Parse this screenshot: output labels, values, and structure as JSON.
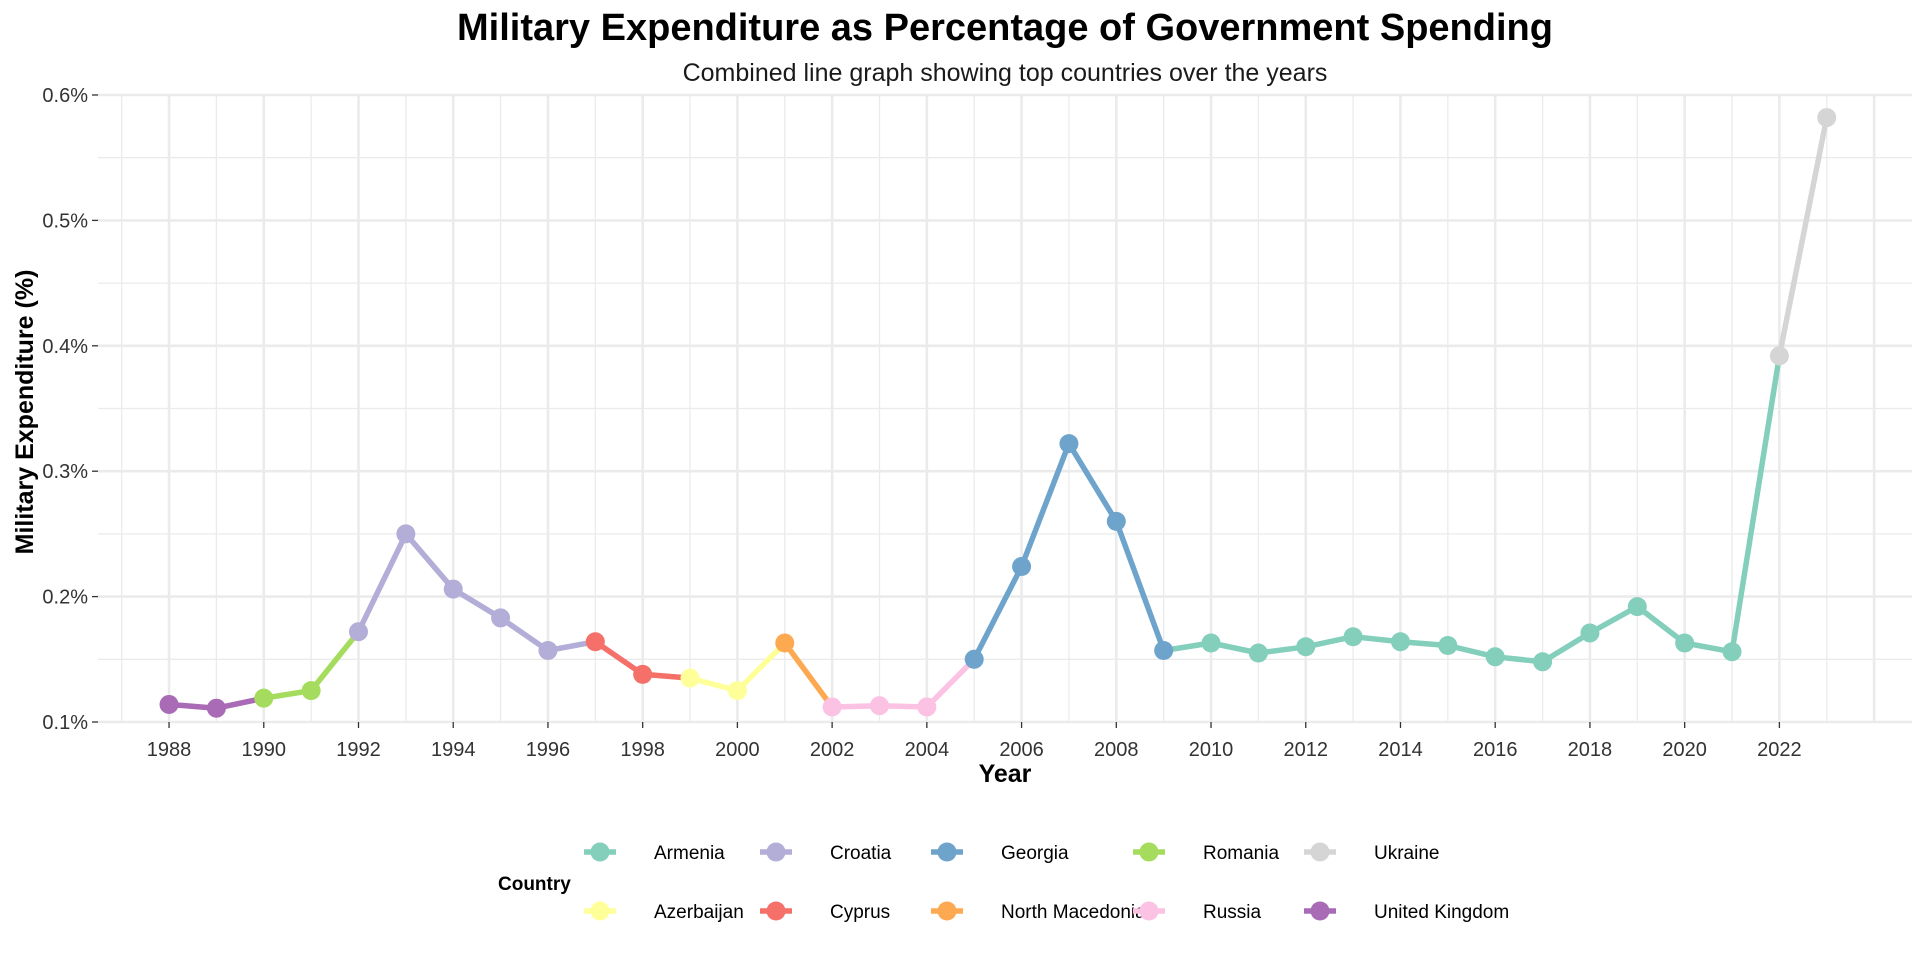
{
  "chart_data": {
    "type": "line",
    "title": "Military Expenditure as Percentage of Government Spending",
    "subtitle": "Combined line graph showing top countries over the years",
    "xlabel": "Year",
    "ylabel": "Military Expenditure (%)",
    "xlim": [
      1986.5,
      2024.8
    ],
    "ylim": [
      0.1,
      0.6
    ],
    "x_ticks": [
      "1988",
      "1990",
      "1992",
      "1994",
      "1996",
      "1998",
      "2000",
      "2002",
      "2004",
      "2006",
      "2008",
      "2010",
      "2012",
      "2014",
      "2016",
      "2018",
      "2020",
      "2022"
    ],
    "y_ticks": [
      "0.1%",
      "0.2%",
      "0.3%",
      "0.4%",
      "0.5%",
      "0.6%"
    ],
    "grid": true,
    "legend": {
      "title": "Country",
      "position": "bottom",
      "items": [
        "Armenia",
        "Croatia",
        "Georgia",
        "Romania",
        "Ukraine",
        "Azerbaijan",
        "Cyprus",
        "North Macedonia",
        "Russia",
        "United Kingdom"
      ]
    },
    "series": [
      {
        "name": "United Kingdom",
        "color": "#A96BB5",
        "points": [
          [
            1988,
            0.114
          ],
          [
            1989,
            0.111
          ],
          [
            1990,
            0.119
          ]
        ]
      },
      {
        "name": "Romania",
        "color": "#A6DC5E",
        "points": [
          [
            1990,
            0.119
          ],
          [
            1991,
            0.125
          ],
          [
            1992,
            0.172
          ]
        ]
      },
      {
        "name": "Croatia",
        "color": "#B3AED8",
        "points": [
          [
            1992,
            0.172
          ],
          [
            1993,
            0.25
          ],
          [
            1994,
            0.206
          ],
          [
            1995,
            0.183
          ],
          [
            1996,
            0.157
          ],
          [
            1997,
            0.164
          ]
        ]
      },
      {
        "name": "Cyprus",
        "color": "#F47069",
        "points": [
          [
            1997,
            0.164
          ],
          [
            1998,
            0.138
          ],
          [
            1999,
            0.135
          ]
        ]
      },
      {
        "name": "Azerbaijan",
        "color": "#FFFF99",
        "points": [
          [
            1999,
            0.135
          ],
          [
            2000,
            0.125
          ],
          [
            2001,
            0.163
          ]
        ]
      },
      {
        "name": "North Macedonia",
        "color": "#FDA951",
        "points": [
          [
            2001,
            0.163
          ],
          [
            2002,
            0.112
          ]
        ]
      },
      {
        "name": "Russia",
        "color": "#FBC2E3",
        "points": [
          [
            2002,
            0.112
          ],
          [
            2003,
            0.113
          ],
          [
            2004,
            0.112
          ],
          [
            2005,
            0.15
          ]
        ]
      },
      {
        "name": "Georgia",
        "color": "#6EA4CB",
        "points": [
          [
            2005,
            0.15
          ],
          [
            2006,
            0.224
          ],
          [
            2007,
            0.322
          ],
          [
            2008,
            0.26
          ],
          [
            2009,
            0.157
          ]
        ]
      },
      {
        "name": "Armenia",
        "color": "#83CFBC",
        "points": [
          [
            2009,
            0.157
          ],
          [
            2010,
            0.163
          ],
          [
            2011,
            0.155
          ],
          [
            2012,
            0.16
          ],
          [
            2013,
            0.168
          ],
          [
            2014,
            0.164
          ],
          [
            2015,
            0.161
          ],
          [
            2016,
            0.152
          ],
          [
            2017,
            0.148
          ],
          [
            2018,
            0.171
          ],
          [
            2019,
            0.192
          ],
          [
            2020,
            0.163
          ],
          [
            2021,
            0.156
          ],
          [
            2022,
            0.392
          ]
        ]
      },
      {
        "name": "Ukraine",
        "color": "#D5D5D5",
        "points": [
          [
            2022,
            0.392
          ],
          [
            2023,
            0.582
          ]
        ]
      }
    ],
    "markers": [
      {
        "year": 1988,
        "value": 0.114,
        "country": "United Kingdom"
      },
      {
        "year": 1989,
        "value": 0.111,
        "country": "United Kingdom"
      },
      {
        "year": 1990,
        "value": 0.119,
        "country": "Romania"
      },
      {
        "year": 1991,
        "value": 0.125,
        "country": "Romania"
      },
      {
        "year": 1992,
        "value": 0.172,
        "country": "Croatia"
      },
      {
        "year": 1993,
        "value": 0.25,
        "country": "Croatia"
      },
      {
        "year": 1994,
        "value": 0.206,
        "country": "Croatia"
      },
      {
        "year": 1995,
        "value": 0.183,
        "country": "Croatia"
      },
      {
        "year": 1996,
        "value": 0.157,
        "country": "Croatia"
      },
      {
        "year": 1997,
        "value": 0.164,
        "country": "Cyprus"
      },
      {
        "year": 1998,
        "value": 0.138,
        "country": "Cyprus"
      },
      {
        "year": 1999,
        "value": 0.135,
        "country": "Azerbaijan"
      },
      {
        "year": 2000,
        "value": 0.125,
        "country": "Azerbaijan"
      },
      {
        "year": 2001,
        "value": 0.163,
        "country": "North Macedonia"
      },
      {
        "year": 2002,
        "value": 0.112,
        "country": "Russia"
      },
      {
        "year": 2003,
        "value": 0.113,
        "country": "Russia"
      },
      {
        "year": 2004,
        "value": 0.112,
        "country": "Russia"
      },
      {
        "year": 2005,
        "value": 0.15,
        "country": "Georgia"
      },
      {
        "year": 2006,
        "value": 0.224,
        "country": "Georgia"
      },
      {
        "year": 2007,
        "value": 0.322,
        "country": "Georgia"
      },
      {
        "year": 2008,
        "value": 0.26,
        "country": "Georgia"
      },
      {
        "year": 2009,
        "value": 0.157,
        "country": "Georgia"
      },
      {
        "year": 2010,
        "value": 0.163,
        "country": "Armenia"
      },
      {
        "year": 2011,
        "value": 0.155,
        "country": "Armenia"
      },
      {
        "year": 2012,
        "value": 0.16,
        "country": "Armenia"
      },
      {
        "year": 2013,
        "value": 0.168,
        "country": "Armenia"
      },
      {
        "year": 2014,
        "value": 0.164,
        "country": "Armenia"
      },
      {
        "year": 2015,
        "value": 0.161,
        "country": "Armenia"
      },
      {
        "year": 2016,
        "value": 0.152,
        "country": "Armenia"
      },
      {
        "year": 2017,
        "value": 0.148,
        "country": "Armenia"
      },
      {
        "year": 2018,
        "value": 0.171,
        "country": "Armenia"
      },
      {
        "year": 2019,
        "value": 0.192,
        "country": "Armenia"
      },
      {
        "year": 2020,
        "value": 0.163,
        "country": "Armenia"
      },
      {
        "year": 2021,
        "value": 0.156,
        "country": "Armenia"
      },
      {
        "year": 2022,
        "value": 0.392,
        "country": "Ukraine"
      },
      {
        "year": 2023,
        "value": 0.582,
        "country": "Ukraine"
      }
    ]
  }
}
